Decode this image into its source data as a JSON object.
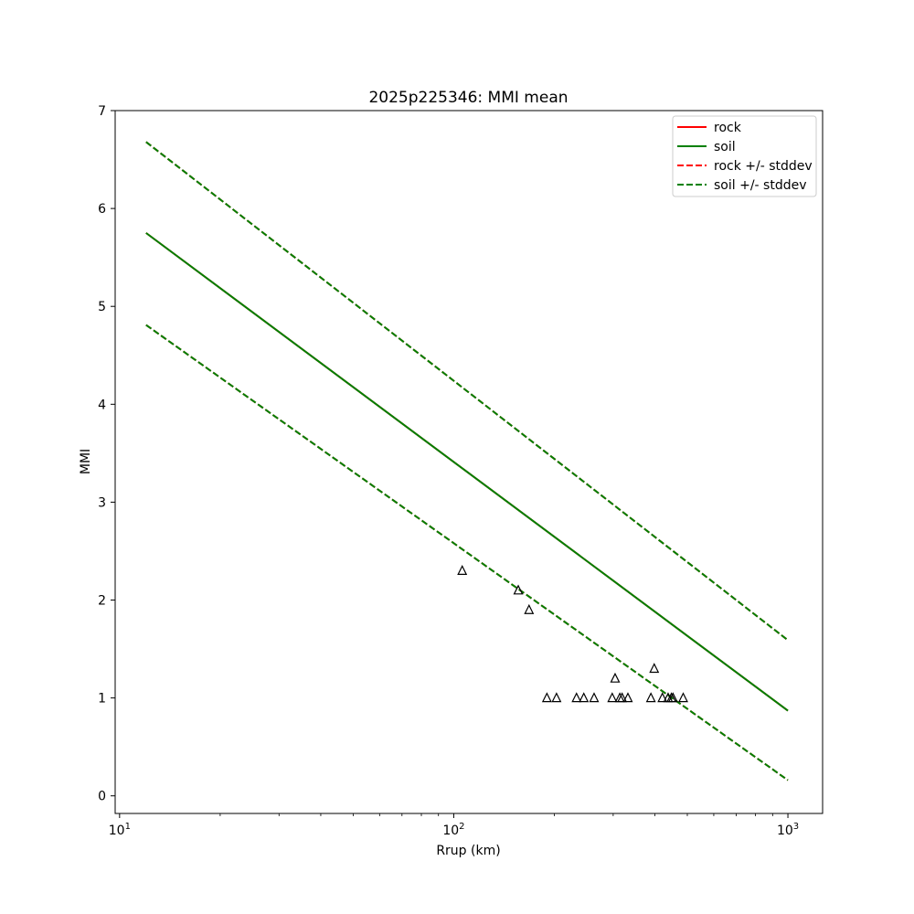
{
  "chart_data": {
    "type": "line",
    "title": "2025p225346: MMI mean",
    "xlabel": "Rrup (km)",
    "ylabel": "MMI",
    "xscale": "log",
    "xlim": [
      9.7,
      1270
    ],
    "ylim": [
      -0.18,
      7.0
    ],
    "xticks": [
      {
        "value": 10,
        "base": "10",
        "exp": "1"
      },
      {
        "value": 100,
        "base": "10",
        "exp": "2"
      },
      {
        "value": 1000,
        "base": "10",
        "exp": "3"
      }
    ],
    "yticks": [
      0,
      1,
      2,
      3,
      4,
      5,
      6,
      7
    ],
    "grid": false,
    "legend_position": "top-right",
    "series": [
      {
        "name": "rock",
        "color": "#ff0000",
        "dash": "solid",
        "x": [
          12,
          1000
        ],
        "y": [
          5.75,
          0.87
        ]
      },
      {
        "name": "soil",
        "color": "#008000",
        "dash": "solid",
        "x": [
          12,
          1000
        ],
        "y": [
          5.75,
          0.87
        ]
      },
      {
        "name": "rock +/- stddev",
        "color": "#ff0000",
        "dash": "dashed",
        "x": [
          12,
          1000
        ],
        "y": [
          6.68,
          1.59
        ]
      },
      {
        "name": "soil +/- stddev",
        "color": "#008000",
        "dash": "dashed",
        "x": [
          12,
          1000
        ],
        "y": [
          6.68,
          1.59
        ]
      }
    ],
    "lower_band": {
      "x": [
        12,
        1000
      ],
      "y": [
        4.81,
        0.16
      ]
    },
    "observations": {
      "marker": "triangle",
      "color": "#000000",
      "points": [
        {
          "x": 106,
          "y": 2.3
        },
        {
          "x": 156,
          "y": 2.1
        },
        {
          "x": 168,
          "y": 1.9
        },
        {
          "x": 190,
          "y": 1.0
        },
        {
          "x": 203,
          "y": 1.0
        },
        {
          "x": 233,
          "y": 1.0
        },
        {
          "x": 245,
          "y": 1.0
        },
        {
          "x": 263,
          "y": 1.0
        },
        {
          "x": 298,
          "y": 1.0
        },
        {
          "x": 304,
          "y": 1.2
        },
        {
          "x": 314,
          "y": 1.0
        },
        {
          "x": 319,
          "y": 1.0
        },
        {
          "x": 332,
          "y": 1.0
        },
        {
          "x": 389,
          "y": 1.0
        },
        {
          "x": 398,
          "y": 1.3
        },
        {
          "x": 421,
          "y": 1.0
        },
        {
          "x": 438,
          "y": 1.0
        },
        {
          "x": 448,
          "y": 1.0
        },
        {
          "x": 453,
          "y": 1.0
        },
        {
          "x": 486,
          "y": 1.0
        }
      ]
    }
  }
}
